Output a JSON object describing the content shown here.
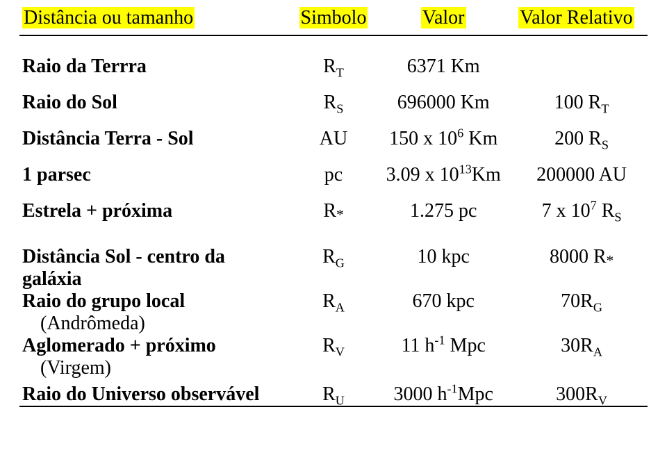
{
  "header": {
    "c1": "Distância ou tamanho",
    "c2": "Simbolo",
    "c3": "Valor",
    "c4": "Valor Relativo"
  },
  "rows": {
    "r1": {
      "label": "Raio da Terrra",
      "sym_base": "R",
      "sym_sub": "T",
      "val": "6371 Km",
      "rel": ""
    },
    "r2": {
      "label": "Raio do Sol",
      "sym_base": "R",
      "sym_sub": "S",
      "val": "696000 Km",
      "rel_a": "100 R",
      "rel_sub": "T"
    },
    "r3": {
      "label": "Distância Terra - Sol",
      "sym": "AU",
      "val_a": "150 x 10",
      "val_sup": "6",
      "val_b": " Km",
      "rel_a": "200 R",
      "rel_sub": "S"
    },
    "r4": {
      "label": "1 parsec",
      "sym": "pc",
      "val_a": "3.09 x 10",
      "val_sup": "13",
      "val_b": "Km",
      "rel": "200000 AU"
    },
    "r5": {
      "label": "Estrela + próxima",
      "sym_base": "R",
      "sym_star": "*",
      "val": "1.275 pc",
      "rel_a": "7 x 10",
      "rel_sup": "7",
      "rel_b": " R",
      "rel_sub": "S"
    },
    "r6": {
      "label": "Distância Sol - centro da",
      "label2": "galáxia",
      "sym_base": "R",
      "sym_sub": "G",
      "val": "10 kpc",
      "rel_a": "8000 R",
      "rel_star": "*"
    },
    "r7": {
      "label": "Raio do grupo local",
      "label2": "(Andrômeda)",
      "sym_base": "R",
      "sym_sub": "A",
      "val": "670 kpc",
      "rel_a": "70R",
      "rel_sub": "G"
    },
    "r8": {
      "label": "Aglomerado + próximo",
      "label2": "(Virgem)",
      "sym_base": "R",
      "sym_sub": "V",
      "val_a": "11 h",
      "val_sup": "-1",
      "val_b": "  Mpc",
      "rel_a": "30R",
      "rel_sub": "A"
    },
    "r9": {
      "label": "Raio do Universo  observável",
      "sym_base": "R",
      "sym_sub": "U",
      "val_a": "3000 h",
      "val_sup": "-1",
      "val_b": "Mpc",
      "rel_a": "300R",
      "rel_sub": "V"
    }
  }
}
